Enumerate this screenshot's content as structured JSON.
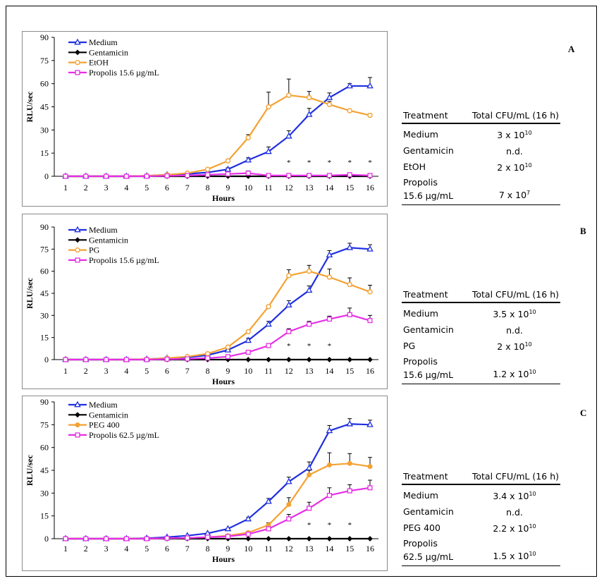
{
  "chart_data": [
    {
      "panel_label": "A",
      "type": "line",
      "ylabel": "RLU/sec",
      "xlabel": "Hours",
      "ylim": [
        0,
        90
      ],
      "yticks": [
        "0",
        "15",
        "30",
        "45",
        "60",
        "75",
        "90"
      ],
      "categories": [
        "1",
        "2",
        "3",
        "4",
        "5",
        "6",
        "7",
        "8",
        "9",
        "10",
        "11",
        "12",
        "13",
        "14",
        "15",
        "16"
      ],
      "asterisk_labels": [
        {
          "x": "12",
          "text": "*"
        },
        {
          "x": "13",
          "text": "*"
        },
        {
          "x": "14",
          "text": "*"
        },
        {
          "x": "15",
          "text": "*"
        },
        {
          "x": "16",
          "text": "*"
        }
      ],
      "series": [
        {
          "name": "Medium",
          "color": "#1f2fe0",
          "marker": "triangle-open",
          "values": [
            0,
            0,
            0,
            0,
            0.3,
            1,
            1.5,
            2.5,
            4.5,
            10.5,
            16,
            26,
            40,
            51,
            58.5,
            58.5
          ],
          "err": [
            0,
            0,
            0,
            0,
            0,
            0,
            0,
            0,
            1,
            1.5,
            3,
            3.5,
            4,
            3,
            1.5,
            5.5
          ]
        },
        {
          "name": "Gentamicin",
          "color": "#000000",
          "marker": "diamond",
          "values": [
            0,
            0,
            0,
            0,
            0,
            0,
            0,
            0,
            0,
            0,
            0,
            0,
            0,
            0,
            0,
            0
          ],
          "err": [
            0,
            0,
            0,
            0,
            0,
            0,
            0,
            0,
            0,
            0,
            0,
            0,
            0,
            0,
            0,
            0
          ]
        },
        {
          "name": "EtOH",
          "color": "#f4a232",
          "marker": "circle-open",
          "values": [
            0,
            0,
            0,
            0,
            0.3,
            1,
            2,
            4.5,
            10,
            25,
            45,
            52.5,
            51,
            46.5,
            42.5,
            39.5
          ],
          "err": [
            0,
            0,
            0,
            0,
            0,
            0,
            0,
            0.5,
            1,
            2,
            9.5,
            10.5,
            4,
            2,
            0,
            1
          ]
        },
        {
          "name": "Propolis 15.6 µg/mL",
          "color": "#e62ee6",
          "marker": "square-open",
          "values": [
            0,
            0,
            0,
            0,
            0,
            0.3,
            0.5,
            1,
            1.5,
            2,
            0.5,
            0.5,
            0.5,
            0.5,
            1,
            0.5
          ],
          "err": [
            0,
            0,
            0,
            0,
            0,
            0,
            0,
            0,
            0.5,
            1.5,
            0,
            0,
            0,
            0,
            0,
            0
          ]
        }
      ]
    },
    {
      "panel_label": "B",
      "type": "line",
      "ylabel": "RLU/sec",
      "xlabel": "Hours",
      "ylim": [
        0,
        90
      ],
      "yticks": [
        "0",
        "15",
        "30",
        "45",
        "60",
        "75",
        "90"
      ],
      "categories": [
        "1",
        "2",
        "3",
        "4",
        "5",
        "6",
        "7",
        "8",
        "9",
        "10",
        "11",
        "12",
        "13",
        "14",
        "15",
        "16"
      ],
      "asterisk_labels": [
        {
          "x": "12",
          "text": "*"
        },
        {
          "x": "13",
          "text": "*"
        },
        {
          "x": "14",
          "text": "*"
        }
      ],
      "series": [
        {
          "name": "Medium",
          "color": "#1f2fe0",
          "marker": "triangle-open",
          "values": [
            0,
            0,
            0,
            0,
            0.3,
            1,
            1.5,
            3,
            6.5,
            13,
            24,
            37,
            47,
            71,
            76,
            75
          ],
          "err": [
            0,
            0,
            0,
            0,
            0,
            0,
            0,
            0,
            0.5,
            1.5,
            2,
            3,
            3,
            3,
            3,
            3
          ]
        },
        {
          "name": "Gentamicin",
          "color": "#000000",
          "marker": "diamond",
          "values": [
            0,
            0,
            0,
            0,
            0,
            0,
            0,
            0,
            0,
            0,
            0,
            0,
            0,
            0,
            0,
            0
          ],
          "err": [
            0,
            0,
            0,
            0,
            0,
            0,
            0,
            0,
            0,
            0,
            0,
            0,
            0,
            0,
            0,
            0
          ]
        },
        {
          "name": "PG",
          "color": "#f4a232",
          "marker": "circle-open",
          "values": [
            0,
            0,
            0,
            0,
            0.3,
            1,
            2,
            4,
            8.5,
            19,
            36,
            57,
            60,
            56,
            51,
            46
          ],
          "err": [
            0,
            0,
            0,
            0,
            0,
            0,
            0,
            0,
            0.5,
            0.5,
            1,
            4,
            4,
            5.5,
            4.5,
            4.5
          ]
        },
        {
          "name": "Propolis 15.6 µg/mL",
          "color": "#e62ee6",
          "marker": "square-open",
          "values": [
            0,
            0,
            0,
            0,
            0,
            0.3,
            0.5,
            1,
            2,
            5,
            9.5,
            19,
            24,
            27.5,
            30.5,
            26.5
          ],
          "err": [
            0,
            0,
            0,
            0,
            0,
            0,
            0,
            0,
            0,
            0.5,
            1,
            2,
            2,
            2,
            4.5,
            3.5
          ]
        }
      ]
    },
    {
      "panel_label": "C",
      "type": "line",
      "ylabel": "RLU/sec",
      "xlabel": "Hours",
      "ylim": [
        0,
        90
      ],
      "yticks": [
        "0",
        "15",
        "30",
        "45",
        "60",
        "75",
        "90"
      ],
      "categories": [
        "1",
        "2",
        "3",
        "4",
        "5",
        "6",
        "7",
        "8",
        "9",
        "10",
        "11",
        "12",
        "13",
        "14",
        "15",
        "16"
      ],
      "asterisk_labels": [
        {
          "x": "13",
          "text": "*"
        },
        {
          "x": "14",
          "text": "*"
        },
        {
          "x": "15",
          "text": "*"
        }
      ],
      "series": [
        {
          "name": "Medium",
          "color": "#1f2fe0",
          "marker": "triangle-open",
          "values": [
            0,
            0,
            0,
            0,
            0.3,
            1,
            2,
            3.5,
            6.5,
            13,
            24.5,
            37.5,
            46.5,
            71,
            75.5,
            75
          ],
          "err": [
            0,
            0,
            0,
            0,
            0,
            0,
            0,
            0,
            0,
            1,
            2,
            3,
            4,
            3.5,
            3.5,
            3
          ]
        },
        {
          "name": "Gentamicin",
          "color": "#000000",
          "marker": "diamond",
          "values": [
            0,
            0,
            0,
            0,
            0,
            0,
            0,
            0,
            0,
            0,
            0,
            0,
            0,
            0,
            0,
            0
          ],
          "err": [
            0,
            0,
            0,
            0,
            0,
            0,
            0,
            0,
            0,
            0,
            0,
            0,
            0,
            0,
            0,
            0
          ]
        },
        {
          "name": "PEG 400",
          "color": "#f4a232",
          "marker": "circle-filled",
          "values": [
            0,
            0,
            0,
            0,
            0,
            0.3,
            0.5,
            1,
            2,
            4,
            9,
            22.5,
            42,
            48.5,
            49.5,
            47.5
          ],
          "err": [
            0,
            0,
            0,
            0,
            0,
            0,
            0,
            0,
            0,
            0.5,
            1.5,
            4.5,
            3,
            8,
            6.5,
            6
          ]
        },
        {
          "name": "Propolis 62.5  µg/mL",
          "color": "#e62ee6",
          "marker": "square-open",
          "values": [
            0,
            0,
            0,
            0,
            0,
            0.3,
            0.5,
            1,
            1.5,
            3,
            6.5,
            13,
            20,
            28.5,
            31.5,
            33.5
          ],
          "err": [
            0,
            0,
            0,
            0,
            0,
            0,
            0,
            0,
            0,
            0.5,
            1,
            3,
            4,
            5,
            4,
            5
          ]
        }
      ]
    }
  ],
  "tables": [
    {
      "header": {
        "treatment": "Treatment",
        "cfu": "Total CFU/mL (16 h)"
      },
      "rows": [
        {
          "name": "Medium",
          "base": "3 x 10",
          "exp": "10"
        },
        {
          "name": "Gentamicin",
          "base": "n.d.",
          "exp": ""
        },
        {
          "name": "EtOH",
          "base": "2 x 10",
          "exp": "10"
        },
        {
          "name_line1": "Propolis",
          "name_line2": "15.6 µg/mL",
          "base": "7 x 10",
          "exp": "7"
        }
      ]
    },
    {
      "header": {
        "treatment": "Treatment",
        "cfu": "Total CFU/mL (16 h)"
      },
      "rows": [
        {
          "name": "Medium",
          "base": "3.5 x 10",
          "exp": "10"
        },
        {
          "name": "Gentamicin",
          "base": "n.d.",
          "exp": ""
        },
        {
          "name": "PG",
          "base": "2 x 10",
          "exp": "10"
        },
        {
          "name_line1": "Propolis",
          "name_line2": "15.6 µg/mL",
          "base": "1.2 x 10",
          "exp": "10"
        }
      ]
    },
    {
      "header": {
        "treatment": "Treatment",
        "cfu": "Total CFU/mL (16 h)"
      },
      "rows": [
        {
          "name": "Medium",
          "base": "3.4 x 10",
          "exp": "10"
        },
        {
          "name": "Gentamicin",
          "base": "n.d.",
          "exp": ""
        },
        {
          "name": "PEG 400",
          "base": "2.2 x 10",
          "exp": "10"
        },
        {
          "name_line1": "Propolis",
          "name_line2": "62.5 µg/mL",
          "base": "1.5 x 10",
          "exp": "10"
        }
      ]
    }
  ]
}
